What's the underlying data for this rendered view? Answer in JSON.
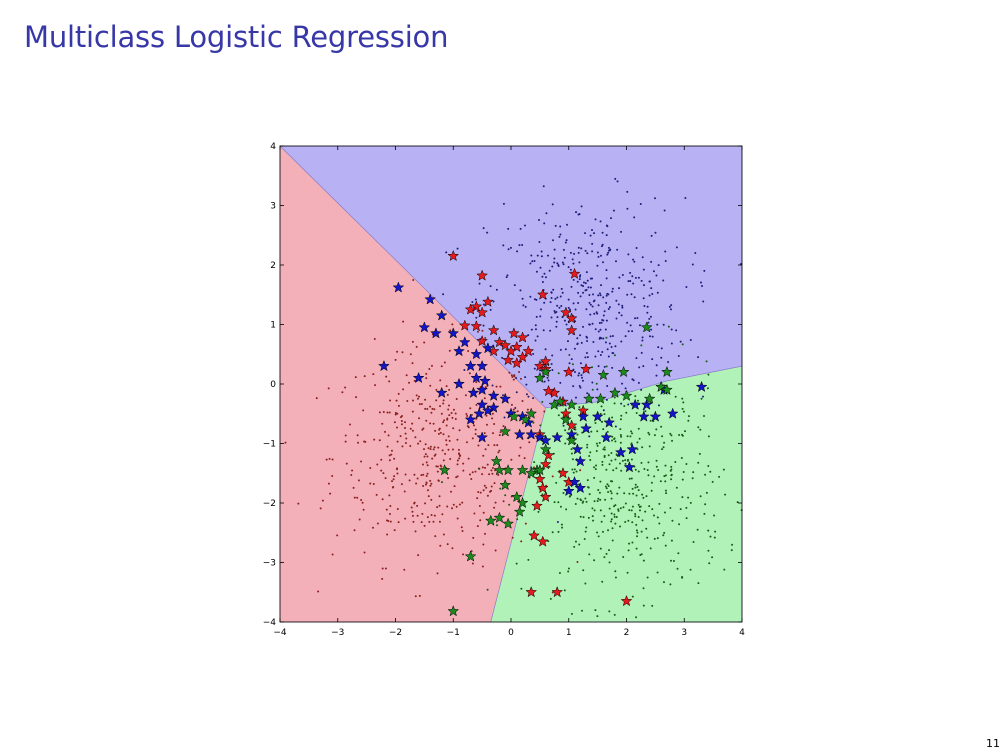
{
  "slide": {
    "title": "Multiclass Logistic Regression",
    "page_number": "11"
  },
  "colors": {
    "title": "#3737a8",
    "region_red": "#f3b0b8",
    "region_blue": "#b8b1f4",
    "region_green": "#b0f2b8",
    "points_red": "#8b2020",
    "points_blue": "#1e1e7a",
    "points_green": "#155e15",
    "star_red": "#e41a1c",
    "star_blue": "#1515c8",
    "star_green": "#1d8a1d"
  },
  "chart_data": {
    "type": "scatter",
    "xlim": [
      -4,
      4
    ],
    "ylim": [
      -4,
      4
    ],
    "xticks": [
      -4,
      -3,
      -2,
      -1,
      0,
      1,
      2,
      3,
      4
    ],
    "yticks": [
      -4,
      -3,
      -2,
      -1,
      0,
      1,
      2,
      3,
      4
    ],
    "xtick_labels": [
      "−4",
      "−3",
      "−2",
      "−1",
      "0",
      "1",
      "2",
      "3",
      "4"
    ],
    "ytick_labels": [
      "−4",
      "−3",
      "−2",
      "−1",
      "0",
      "1",
      "2",
      "3",
      "4"
    ],
    "grid": false,
    "decision_regions": [
      {
        "class": "red",
        "polygon": [
          [
            -4,
            4
          ],
          [
            0.6,
            -0.4
          ],
          [
            -0.35,
            -4
          ],
          [
            -4,
            -4
          ]
        ]
      },
      {
        "class": "blue",
        "polygon": [
          [
            -4,
            4
          ],
          [
            4,
            4
          ],
          [
            4,
            0.3
          ],
          [
            2.7,
            0.05
          ],
          [
            1.5,
            -0.3
          ],
          [
            0.6,
            -0.4
          ]
        ]
      },
      {
        "class": "green",
        "polygon": [
          [
            0.6,
            -0.4
          ],
          [
            1.5,
            -0.3
          ],
          [
            2.7,
            0.05
          ],
          [
            4,
            0.3
          ],
          [
            4,
            -4
          ],
          [
            -0.35,
            -4
          ]
        ]
      }
    ],
    "point_clouds": [
      {
        "class": "red",
        "center": [
          -1.3,
          -1.2
        ],
        "spread": [
          0.9,
          0.9
        ],
        "count": 450
      },
      {
        "class": "blue",
        "center": [
          1.3,
          1.3
        ],
        "spread": [
          0.85,
          0.9
        ],
        "count": 450
      },
      {
        "class": "green",
        "center": [
          2.0,
          -1.8
        ],
        "spread": [
          0.85,
          0.95
        ],
        "count": 450
      }
    ],
    "series": [
      {
        "class": "red",
        "points": [
          [
            -1.0,
            2.15
          ],
          [
            -0.5,
            1.82
          ],
          [
            1.1,
            1.85
          ],
          [
            -0.4,
            1.38
          ],
          [
            -0.6,
            1.3
          ],
          [
            -0.7,
            1.25
          ],
          [
            -0.5,
            1.2
          ],
          [
            0.55,
            1.5
          ],
          [
            0.95,
            1.2
          ],
          [
            1.05,
            1.1
          ],
          [
            -0.8,
            0.98
          ],
          [
            -0.6,
            0.97
          ],
          [
            -0.3,
            0.9
          ],
          [
            -0.5,
            0.72
          ],
          [
            0.05,
            0.85
          ],
          [
            0.2,
            0.78
          ],
          [
            -0.2,
            0.7
          ],
          [
            -0.1,
            0.65
          ],
          [
            0.1,
            0.62
          ],
          [
            0.3,
            0.55
          ],
          [
            0.0,
            0.55
          ],
          [
            -0.3,
            0.55
          ],
          [
            0.2,
            0.45
          ],
          [
            0.1,
            0.35
          ],
          [
            -0.05,
            0.4
          ],
          [
            0.6,
            0.38
          ],
          [
            0.5,
            0.3
          ],
          [
            1.05,
            0.9
          ],
          [
            1.0,
            0.2
          ],
          [
            1.3,
            0.25
          ],
          [
            0.6,
            0.25
          ],
          [
            0.75,
            -0.15
          ],
          [
            0.65,
            -0.12
          ],
          [
            0.9,
            -0.3
          ],
          [
            0.95,
            -0.5
          ],
          [
            1.25,
            -0.45
          ],
          [
            1.05,
            -0.7
          ],
          [
            0.5,
            -0.85
          ],
          [
            0.65,
            -1.2
          ],
          [
            0.6,
            -1.35
          ],
          [
            0.9,
            -1.5
          ],
          [
            0.5,
            -1.6
          ],
          [
            1.0,
            -1.65
          ],
          [
            0.55,
            -1.75
          ],
          [
            0.6,
            -1.9
          ],
          [
            0.45,
            -2.05
          ],
          [
            0.4,
            -2.55
          ],
          [
            0.55,
            -2.65
          ],
          [
            0.35,
            -3.5
          ],
          [
            0.8,
            -3.5
          ],
          [
            2.0,
            -3.65
          ]
        ]
      },
      {
        "class": "blue",
        "points": [
          [
            -1.95,
            1.62
          ],
          [
            -1.4,
            1.42
          ],
          [
            -1.2,
            1.15
          ],
          [
            -1.5,
            0.95
          ],
          [
            -1.3,
            0.85
          ],
          [
            -1.0,
            0.85
          ],
          [
            -0.8,
            0.7
          ],
          [
            -0.9,
            0.55
          ],
          [
            -0.6,
            0.5
          ],
          [
            -0.4,
            0.6
          ],
          [
            -0.7,
            0.3
          ],
          [
            -0.5,
            0.3
          ],
          [
            -2.2,
            0.3
          ],
          [
            -1.6,
            0.1
          ],
          [
            -1.2,
            -0.15
          ],
          [
            -0.9,
            0.0
          ],
          [
            -0.6,
            0.1
          ],
          [
            -0.45,
            0.05
          ],
          [
            -0.5,
            -0.1
          ],
          [
            -0.65,
            -0.15
          ],
          [
            -0.3,
            -0.2
          ],
          [
            -0.1,
            -0.25
          ],
          [
            -0.5,
            -0.35
          ],
          [
            -0.3,
            -0.4
          ],
          [
            -0.55,
            -0.5
          ],
          [
            -0.4,
            -0.45
          ],
          [
            0.0,
            -0.5
          ],
          [
            0.2,
            -0.55
          ],
          [
            0.3,
            -0.65
          ],
          [
            0.15,
            -0.85
          ],
          [
            -0.7,
            -0.6
          ],
          [
            -0.5,
            -0.9
          ],
          [
            0.35,
            -0.85
          ],
          [
            0.5,
            -0.9
          ],
          [
            0.6,
            -0.95
          ],
          [
            0.8,
            -0.9
          ],
          [
            1.05,
            -0.85
          ],
          [
            1.3,
            -0.75
          ],
          [
            1.25,
            -0.55
          ],
          [
            1.5,
            -0.55
          ],
          [
            1.7,
            -0.65
          ],
          [
            1.65,
            -0.9
          ],
          [
            1.15,
            -1.1
          ],
          [
            1.2,
            -1.3
          ],
          [
            1.1,
            -1.65
          ],
          [
            1.0,
            -1.8
          ],
          [
            1.2,
            -1.75
          ],
          [
            1.9,
            -1.15
          ],
          [
            2.1,
            -1.1
          ],
          [
            2.05,
            -1.4
          ],
          [
            2.15,
            -0.35
          ],
          [
            2.35,
            -0.35
          ],
          [
            2.3,
            -0.55
          ],
          [
            2.5,
            -0.55
          ],
          [
            2.8,
            -0.5
          ],
          [
            2.65,
            -0.1
          ],
          [
            2.6,
            -0.05
          ],
          [
            3.3,
            -0.05
          ]
        ]
      },
      {
        "class": "green",
        "points": [
          [
            2.35,
            0.95
          ],
          [
            0.5,
            0.1
          ],
          [
            0.6,
            0.2
          ],
          [
            1.6,
            0.15
          ],
          [
            1.95,
            0.2
          ],
          [
            2.7,
            0.2
          ],
          [
            2.6,
            -0.05
          ],
          [
            2.7,
            -0.1
          ],
          [
            1.35,
            -0.25
          ],
          [
            1.55,
            -0.25
          ],
          [
            1.8,
            -0.15
          ],
          [
            2.0,
            -0.2
          ],
          [
            2.4,
            -0.25
          ],
          [
            0.85,
            -0.3
          ],
          [
            1.05,
            -0.35
          ],
          [
            0.75,
            -0.35
          ],
          [
            0.95,
            -0.6
          ],
          [
            1.05,
            -0.95
          ],
          [
            0.35,
            -0.5
          ],
          [
            0.25,
            -0.6
          ],
          [
            0.05,
            -0.55
          ],
          [
            -0.1,
            -0.8
          ],
          [
            0.6,
            -1.1
          ],
          [
            0.45,
            -1.45
          ],
          [
            0.35,
            -1.5
          ],
          [
            0.2,
            -1.45
          ],
          [
            -0.05,
            -1.45
          ],
          [
            -0.25,
            -1.3
          ],
          [
            -0.2,
            -1.45
          ],
          [
            -0.1,
            -1.7
          ],
          [
            -1.15,
            -1.45
          ],
          [
            0.1,
            -1.9
          ],
          [
            0.2,
            -2.0
          ],
          [
            0.15,
            -2.15
          ],
          [
            0.5,
            -1.45
          ],
          [
            -0.2,
            -2.25
          ],
          [
            -0.05,
            -2.35
          ],
          [
            -0.35,
            -2.3
          ],
          [
            -0.7,
            -2.9
          ],
          [
            -1.0,
            -3.82
          ]
        ]
      }
    ]
  }
}
